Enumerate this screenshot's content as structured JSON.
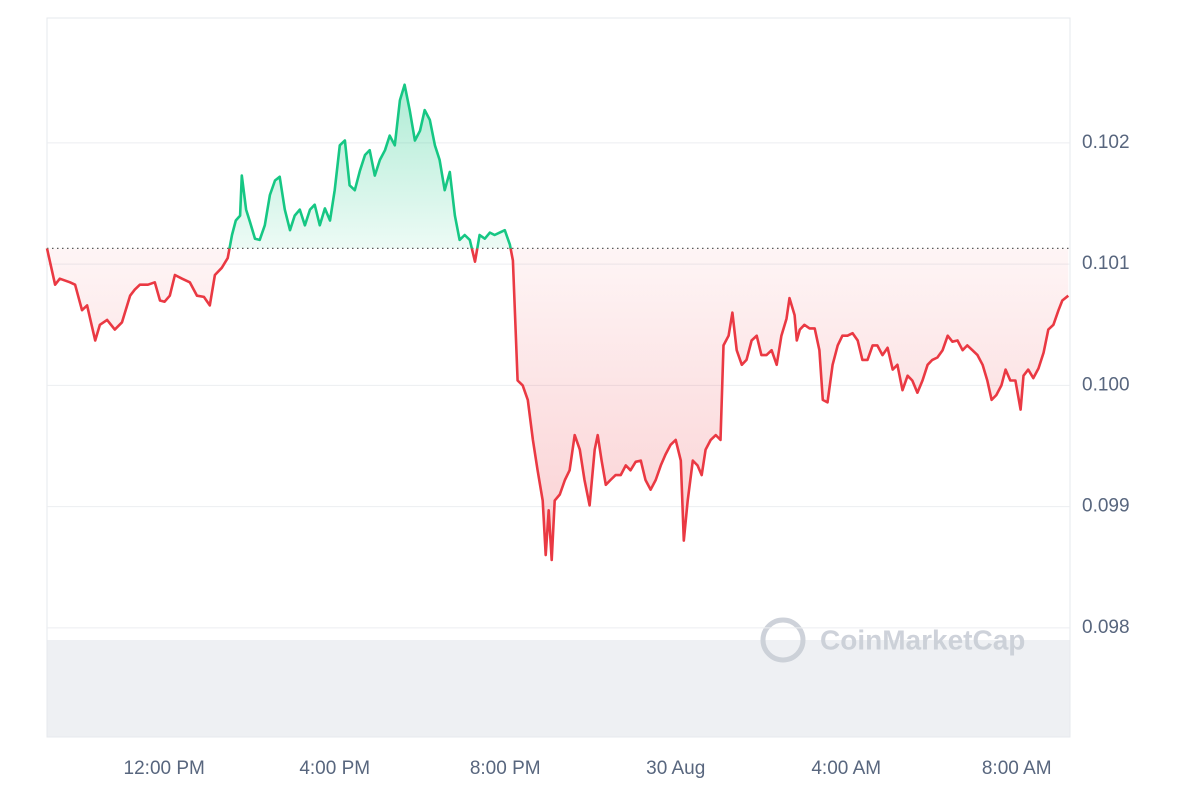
{
  "chart_data": {
    "type": "baseline-line",
    "watermark": "CoinMarketCap",
    "baseline": 0.10113,
    "up_color": "#16c784",
    "down_color": "#ea3943",
    "xlim": [
      9.25,
      33.25
    ],
    "xticks": [
      {
        "value": 12,
        "label": "12:00 PM"
      },
      {
        "value": 16,
        "label": "4:00 PM"
      },
      {
        "value": 20,
        "label": "8:00 PM"
      },
      {
        "value": 24,
        "label": "30 Aug"
      },
      {
        "value": 28,
        "label": "4:00 AM"
      },
      {
        "value": 32,
        "label": "8:00 AM"
      }
    ],
    "ylim": [
      0.0971,
      0.10303
    ],
    "yticks": [
      0.098,
      0.099,
      {
        "value": 0.1,
        "label": "0.100"
      },
      0.101,
      0.102
    ],
    "grid": true,
    "x": [
      9.25,
      9.44,
      9.55,
      9.79,
      9.91,
      10.07,
      10.19,
      10.38,
      10.49,
      10.66,
      10.84,
      11.01,
      11.2,
      11.31,
      11.43,
      11.62,
      11.78,
      11.9,
      12.01,
      12.13,
      12.25,
      12.42,
      12.6,
      12.77,
      12.93,
      13.07,
      13.19,
      13.35,
      13.49,
      13.59,
      13.68,
      13.78,
      13.82,
      13.92,
      14.01,
      14.13,
      14.24,
      14.36,
      14.48,
      14.6,
      14.71,
      14.83,
      14.95,
      15.06,
      15.18,
      15.3,
      15.42,
      15.53,
      15.65,
      15.77,
      15.89,
      16.0,
      16.12,
      16.24,
      16.35,
      16.47,
      16.59,
      16.71,
      16.82,
      16.94,
      17.06,
      17.18,
      17.29,
      17.41,
      17.53,
      17.64,
      17.76,
      17.88,
      18.0,
      18.11,
      18.23,
      18.35,
      18.46,
      18.58,
      18.7,
      18.82,
      18.93,
      19.05,
      19.17,
      19.29,
      19.4,
      19.52,
      19.64,
      19.75,
      19.87,
      19.99,
      20.11,
      20.18,
      20.29,
      20.41,
      20.53,
      20.65,
      20.76,
      20.88,
      20.95,
      21.02,
      21.09,
      21.16,
      21.28,
      21.4,
      21.51,
      21.63,
      21.75,
      21.86,
      21.98,
      22.1,
      22.17,
      22.26,
      22.36,
      22.47,
      22.59,
      22.71,
      22.83,
      22.94,
      23.06,
      23.18,
      23.29,
      23.41,
      23.53,
      23.65,
      23.76,
      23.88,
      24.0,
      24.12,
      24.19,
      24.28,
      24.4,
      24.51,
      24.61,
      24.7,
      24.82,
      24.94,
      25.05,
      25.12,
      25.24,
      25.33,
      25.43,
      25.55,
      25.66,
      25.78,
      25.9,
      26.01,
      26.13,
      26.25,
      26.37,
      26.48,
      26.6,
      26.67,
      26.79,
      26.84,
      26.91,
      27.02,
      27.14,
      27.26,
      27.37,
      27.45,
      27.56,
      27.68,
      27.8,
      27.91,
      28.03,
      28.15,
      28.27,
      28.38,
      28.5,
      28.62,
      28.73,
      28.85,
      28.97,
      29.09,
      29.2,
      29.32,
      29.44,
      29.55,
      29.67,
      29.79,
      29.91,
      30.02,
      30.14,
      30.26,
      30.38,
      30.49,
      30.61,
      30.73,
      30.84,
      30.96,
      31.08,
      31.2,
      31.31,
      31.41,
      31.52,
      31.64,
      31.74,
      31.85,
      31.97,
      32.09,
      32.16,
      32.27,
      32.39,
      32.51,
      32.63,
      32.74,
      32.86,
      32.98,
      33.07,
      33.21
    ],
    "values": [
      0.10113,
      0.10083,
      0.10088,
      0.10085,
      0.10083,
      0.10062,
      0.10066,
      0.10037,
      0.1005,
      0.10054,
      0.10046,
      0.10052,
      0.10074,
      0.10079,
      0.10083,
      0.10083,
      0.10085,
      0.1007,
      0.10069,
      0.10074,
      0.10091,
      0.10088,
      0.10085,
      0.10074,
      0.10073,
      0.10066,
      0.10091,
      0.10097,
      0.10105,
      0.10124,
      0.10136,
      0.1014,
      0.10173,
      0.10145,
      0.10135,
      0.10121,
      0.1012,
      0.10132,
      0.10157,
      0.10169,
      0.10172,
      0.10145,
      0.10128,
      0.1014,
      0.10145,
      0.10132,
      0.10145,
      0.10149,
      0.10132,
      0.10146,
      0.10136,
      0.10161,
      0.10198,
      0.10202,
      0.10165,
      0.10161,
      0.10177,
      0.1019,
      0.10194,
      0.10173,
      0.10186,
      0.10194,
      0.10206,
      0.10198,
      0.10235,
      0.10248,
      0.10227,
      0.10202,
      0.1021,
      0.10227,
      0.10219,
      0.10198,
      0.10186,
      0.10161,
      0.10176,
      0.1014,
      0.1012,
      0.10124,
      0.1012,
      0.10102,
      0.10124,
      0.10121,
      0.10126,
      0.10124,
      0.10126,
      0.10128,
      0.10116,
      0.10103,
      0.10004,
      0.1,
      0.09988,
      0.09955,
      0.0993,
      0.09905,
      0.0986,
      0.09897,
      0.09856,
      0.09905,
      0.0991,
      0.09922,
      0.0993,
      0.09959,
      0.09947,
      0.09922,
      0.09901,
      0.09947,
      0.09959,
      0.09938,
      0.09918,
      0.09922,
      0.09926,
      0.09926,
      0.09934,
      0.0993,
      0.09937,
      0.09938,
      0.09922,
      0.09914,
      0.09922,
      0.09934,
      0.09943,
      0.09951,
      0.09955,
      0.09938,
      0.09872,
      0.09905,
      0.09938,
      0.09934,
      0.09926,
      0.09947,
      0.09955,
      0.09959,
      0.09955,
      0.10033,
      0.10041,
      0.1006,
      0.10029,
      0.10017,
      0.10021,
      0.10037,
      0.10041,
      0.10025,
      0.10025,
      0.10029,
      0.10017,
      0.10041,
      0.10055,
      0.10072,
      0.10058,
      0.10037,
      0.10046,
      0.1005,
      0.10047,
      0.10047,
      0.10029,
      0.09988,
      0.09986,
      0.10017,
      0.10033,
      0.10041,
      0.10041,
      0.10043,
      0.10037,
      0.10021,
      0.10021,
      0.10033,
      0.10033,
      0.10025,
      0.10031,
      0.10013,
      0.10017,
      0.09996,
      0.10008,
      0.10004,
      0.09994,
      0.10004,
      0.10017,
      0.10021,
      0.10023,
      0.10029,
      0.10041,
      0.10036,
      0.10037,
      0.10029,
      0.10033,
      0.10029,
      0.10025,
      0.10017,
      0.10004,
      0.09988,
      0.09992,
      0.1,
      0.10013,
      0.10004,
      0.10004,
      0.0998,
      0.10008,
      0.10013,
      0.10006,
      0.10014,
      0.10027,
      0.10046,
      0.1005,
      0.10062,
      0.1007,
      0.10074
    ]
  }
}
